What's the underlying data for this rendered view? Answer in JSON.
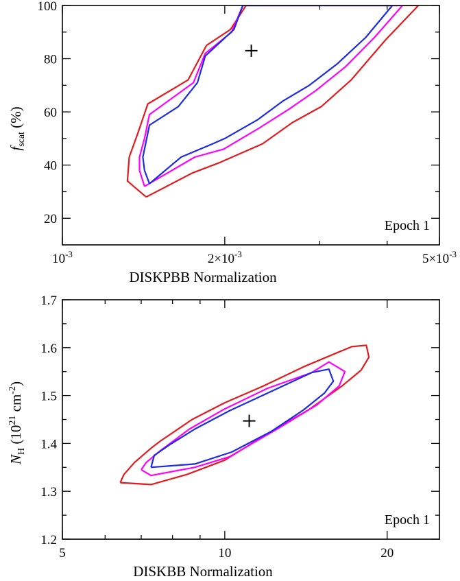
{
  "chart_data": [
    {
      "type": "line",
      "xlabel": "DISKPBB Normalization",
      "ylabel_main": "f",
      "ylabel_sub": "scat",
      "ylabel_tail": " (%)",
      "xscale": "log",
      "xlim": [
        0.001,
        0.005
      ],
      "ylim": [
        10,
        100
      ],
      "xticks": [
        {
          "value": 0.001,
          "mant": "",
          "exp": "-3",
          "base": "10"
        },
        {
          "value": 0.002,
          "mant": "2×",
          "exp": "-3",
          "base": "10"
        },
        {
          "value": 0.005,
          "mant": "5×",
          "exp": "-3",
          "base": "10"
        }
      ],
      "yticks": [
        20,
        40,
        60,
        80,
        100
      ],
      "annotation": "Epoch 1",
      "best_fit": {
        "x": 0.00224,
        "y": 83
      },
      "series": [
        {
          "color": "#e41a1c",
          "points": [
            [
              0.00143,
              28
            ],
            [
              0.00132,
              34
            ],
            [
              0.00133,
              43
            ],
            [
              0.00138,
              52
            ],
            [
              0.00144,
              63
            ],
            [
              0.00171,
              72
            ],
            [
              0.00185,
              85
            ],
            [
              0.00205,
              91
            ],
            [
              0.00219,
              100
            ],
            [
              0.00457,
              100
            ],
            [
              0.00397,
              87
            ],
            [
              0.00343,
              72
            ],
            [
              0.00302,
              62
            ],
            [
              0.00267,
              56
            ],
            [
              0.00235,
              48
            ],
            [
              0.00196,
              41
            ],
            [
              0.00174,
              37
            ],
            [
              0.00143,
              28
            ]
          ]
        },
        {
          "color": "#ff00ff",
          "points": [
            [
              0.00142,
              32
            ],
            [
              0.00139,
              38
            ],
            [
              0.00139,
              43
            ],
            [
              0.00142,
              50
            ],
            [
              0.00145,
              59
            ],
            [
              0.00175,
              71
            ],
            [
              0.00184,
              82
            ],
            [
              0.00206,
              90
            ],
            [
              0.00216,
              100
            ],
            [
              0.00427,
              100
            ],
            [
              0.00379,
              88
            ],
            [
              0.00335,
              77
            ],
            [
              0.00295,
              68
            ],
            [
              0.00263,
              61
            ],
            [
              0.00232,
              54
            ],
            [
              0.00199,
              46
            ],
            [
              0.00176,
              43
            ],
            [
              0.00142,
              32
            ]
          ]
        },
        {
          "color": "#1a2ae6",
          "points": [
            [
              0.00145,
              33
            ],
            [
              0.00142,
              38
            ],
            [
              0.00141,
              43
            ],
            [
              0.00145,
              55
            ],
            [
              0.00164,
              62
            ],
            [
              0.00178,
              71
            ],
            [
              0.00184,
              81
            ],
            [
              0.00208,
              91
            ],
            [
              0.00216,
              100
            ],
            [
              0.00409,
              100
            ],
            [
              0.00365,
              88
            ],
            [
              0.00323,
              78
            ],
            [
              0.00287,
              70
            ],
            [
              0.00256,
              64
            ],
            [
              0.0023,
              57
            ],
            [
              0.002,
              50
            ],
            [
              0.0019,
              48
            ],
            [
              0.00166,
              43
            ],
            [
              0.00145,
              33
            ]
          ]
        }
      ]
    },
    {
      "type": "line",
      "xlabel": "DISKBB Normalization",
      "ylabel_main": "N",
      "ylabel_sub": "H",
      "ylabel_tail": " (10",
      "ylabel_sup": "21",
      "ylabel_tail2": " cm",
      "ylabel_sup2": "-2",
      "ylabel_end": ")",
      "xscale": "log",
      "xlim": [
        5,
        25
      ],
      "ylim": [
        1.2,
        1.7
      ],
      "xticks": [
        {
          "value": 5,
          "label": "5"
        },
        {
          "value": 10,
          "label": "10"
        },
        {
          "value": 20,
          "label": "20"
        }
      ],
      "yticks": [
        1.2,
        1.3,
        1.4,
        1.5,
        1.6,
        1.7
      ],
      "annotation": "Epoch 1",
      "best_fit": {
        "x": 11.1,
        "y": 1.447
      },
      "series": [
        {
          "color": "#e41a1c",
          "points": [
            [
              6.4,
              1.318
            ],
            [
              6.5,
              1.335
            ],
            [
              6.8,
              1.36
            ],
            [
              7.3,
              1.39
            ],
            [
              7.6,
              1.405
            ],
            [
              8.7,
              1.45
            ],
            [
              10.0,
              1.485
            ],
            [
              11.8,
              1.52
            ],
            [
              14.0,
              1.56
            ],
            [
              16.2,
              1.59
            ],
            [
              17.2,
              1.602
            ],
            [
              18.3,
              1.605
            ],
            [
              18.5,
              1.58
            ],
            [
              17.9,
              1.553
            ],
            [
              16.5,
              1.52
            ],
            [
              14.3,
              1.47
            ],
            [
              12.2,
              1.425
            ],
            [
              10.0,
              1.365
            ],
            [
              8.5,
              1.335
            ],
            [
              7.3,
              1.314
            ],
            [
              6.4,
              1.318
            ]
          ]
        },
        {
          "color": "#ff00ff",
          "points": [
            [
              7.0,
              1.345
            ],
            [
              7.15,
              1.36
            ],
            [
              7.6,
              1.385
            ],
            [
              8.6,
              1.43
            ],
            [
              10.0,
              1.472
            ],
            [
              12.0,
              1.515
            ],
            [
              14.5,
              1.548
            ],
            [
              15.6,
              1.57
            ],
            [
              16.7,
              1.55
            ],
            [
              16.3,
              1.52
            ],
            [
              14.8,
              1.48
            ],
            [
              12.5,
              1.43
            ],
            [
              10.2,
              1.372
            ],
            [
              8.8,
              1.35
            ],
            [
              7.3,
              1.333
            ],
            [
              7.0,
              1.345
            ]
          ]
        },
        {
          "color": "#1a2ae6",
          "points": [
            [
              7.3,
              1.35
            ],
            [
              7.4,
              1.375
            ],
            [
              7.9,
              1.397
            ],
            [
              8.8,
              1.43
            ],
            [
              10.2,
              1.468
            ],
            [
              12.0,
              1.505
            ],
            [
              14.5,
              1.548
            ],
            [
              15.6,
              1.555
            ],
            [
              15.9,
              1.53
            ],
            [
              15.3,
              1.505
            ],
            [
              14.0,
              1.47
            ],
            [
              12.2,
              1.425
            ],
            [
              10.3,
              1.382
            ],
            [
              8.8,
              1.357
            ],
            [
              7.3,
              1.35
            ]
          ]
        }
      ]
    }
  ]
}
